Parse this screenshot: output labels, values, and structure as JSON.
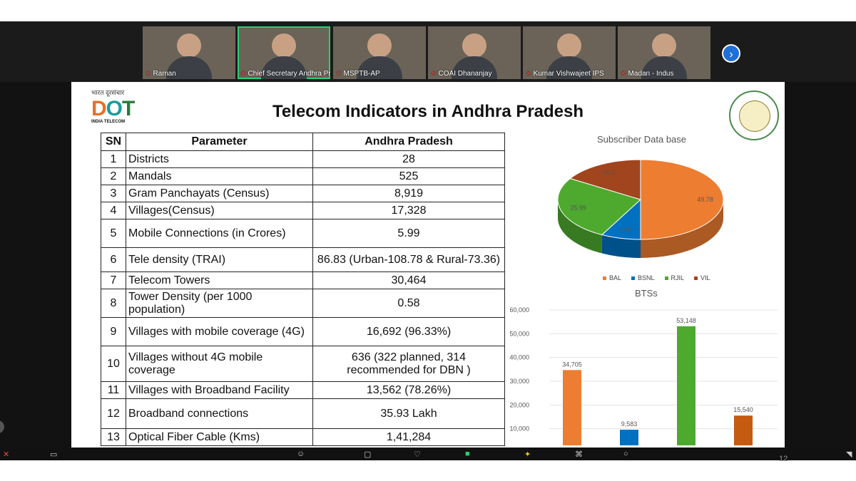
{
  "participants": [
    {
      "name": "Raman",
      "active": false
    },
    {
      "name": "Chief Secretary Andhra Pr...",
      "active": true
    },
    {
      "name": "MSPTB-AP",
      "active": false
    },
    {
      "name": "COAI Dhananjay",
      "active": false
    },
    {
      "name": "Kumar Vishwajeet IPS",
      "active": false
    },
    {
      "name": "Madan - Indus",
      "active": false
    }
  ],
  "slide": {
    "logo_hindi": "भारत दूरसंचार",
    "logo_text": "DOT",
    "logo_sub": "INDIA TELECOM",
    "title": "Telecom Indicators in Andhra Pradesh",
    "table": {
      "headers": [
        "SN",
        "Parameter",
        "Andhra Pradesh"
      ],
      "rows": [
        {
          "sn": "1",
          "param": "Districts",
          "value": "28"
        },
        {
          "sn": "2",
          "param": "Mandals",
          "value": "525"
        },
        {
          "sn": "3",
          "param": "Gram Panchayats (Census)",
          "value": "8,919"
        },
        {
          "sn": "4",
          "param": "Villages(Census)",
          "value": "17,328"
        },
        {
          "sn": "5",
          "param": "Mobile Connections (in Crores)",
          "value": "5.99"
        },
        {
          "sn": "6",
          "param": "Tele density (TRAI)",
          "value": "86.83 (Urban-108.78 & Rural-73.36)"
        },
        {
          "sn": "7",
          "param": "Telecom Towers",
          "value": "30,464"
        },
        {
          "sn": "8",
          "param": "Tower Density (per 1000 population)",
          "value": "0.58"
        },
        {
          "sn": "9",
          "param": "Villages with mobile coverage (4G)",
          "value": "16,692 (96.33%)"
        },
        {
          "sn": "10",
          "param": "Villages without 4G mobile coverage",
          "value": "636 (322 planned, 314 recommended for DBN )"
        },
        {
          "sn": "11",
          "param": "Villages with Broadband Facility",
          "value": "13,562 (78.26%)"
        },
        {
          "sn": "12",
          "param": "Broadband connections",
          "value": "35.93 Lakh"
        },
        {
          "sn": "13",
          "param": "Optical Fiber Cable (Kms)",
          "value": "1,41,284"
        }
      ]
    },
    "page_number": "12"
  },
  "chart_data": [
    {
      "type": "pie",
      "title": "Subscriber Data base",
      "categories": [
        "BAL",
        "BSNL",
        "RJIL",
        "VIL"
      ],
      "values": [
        49.78,
        7.69,
        25.99,
        16.1
      ],
      "data_labels": [
        "49.78",
        "7.69",
        "25.99",
        "16.1"
      ],
      "colors": [
        "#ed7d31",
        "#0070c0",
        "#4eaa2e",
        "#a0451d"
      ],
      "legend_position": "bottom"
    },
    {
      "type": "bar",
      "title": "BTSs",
      "categories": [
        "BAL",
        "BSNL",
        "RJIL",
        "VIL"
      ],
      "values": [
        34705,
        9583,
        53148,
        15540
      ],
      "data_labels": [
        "34,705",
        "9,583",
        "53,148",
        "15,540"
      ],
      "colors": [
        "#ed7d31",
        "#0070c0",
        "#4eaa2e",
        "#c55a11"
      ],
      "yticks": [
        "60,000",
        "50,000",
        "40,000",
        "30,000",
        "20,000",
        "10,000"
      ],
      "ylim": [
        0,
        60000
      ],
      "grid": true
    }
  ]
}
